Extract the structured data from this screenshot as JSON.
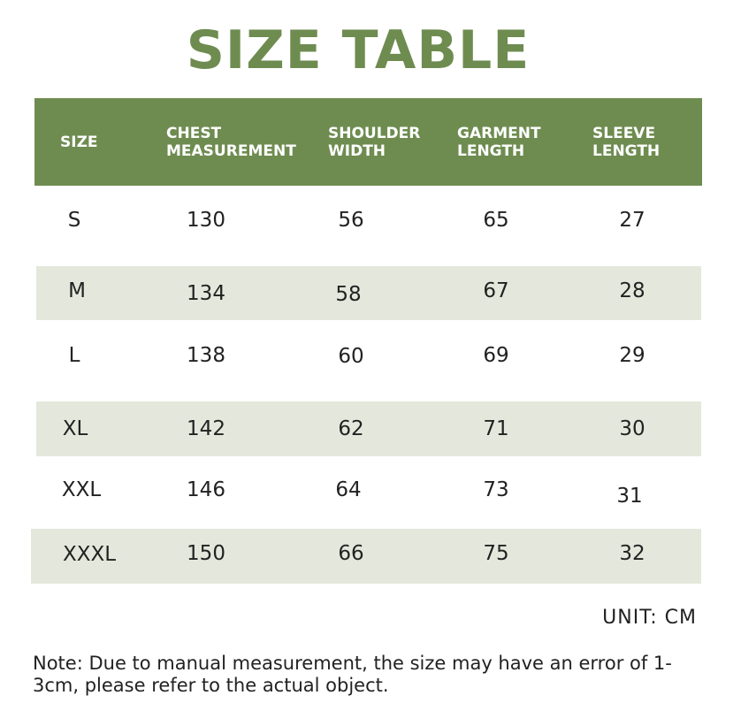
{
  "title": "SIZE TABLE",
  "columns": [
    "SIZE",
    "CHEST\nMEASUREMENT",
    "SHOULDER\nWIDTH",
    "GARMENT\nLENGTH",
    "SLEEVE\nLENGTH"
  ],
  "rows": [
    {
      "size": "S",
      "chest": "130",
      "shoulder": "56",
      "garment": "65",
      "sleeve": "27"
    },
    {
      "size": "M",
      "chest": "134",
      "shoulder": "58",
      "garment": "67",
      "sleeve": "28"
    },
    {
      "size": "L",
      "chest": "138",
      "shoulder": "60",
      "garment": "69",
      "sleeve": "29"
    },
    {
      "size": "XL",
      "chest": "142",
      "shoulder": "62",
      "garment": "71",
      "sleeve": "30"
    },
    {
      "size": "XXL",
      "chest": "146",
      "shoulder": "64",
      "garment": "73",
      "sleeve": "31"
    },
    {
      "size": "XXXL",
      "chest": "150",
      "shoulder": "66",
      "garment": "75",
      "sleeve": "32"
    }
  ],
  "unit": "UNIT:  CM",
  "note": "Note: Due to manual measurement, the size may have an error of 1-3cm, please refer to the actual object.",
  "colors": {
    "accent": "#6e8c50",
    "row_shade": "#e4e8dc"
  }
}
